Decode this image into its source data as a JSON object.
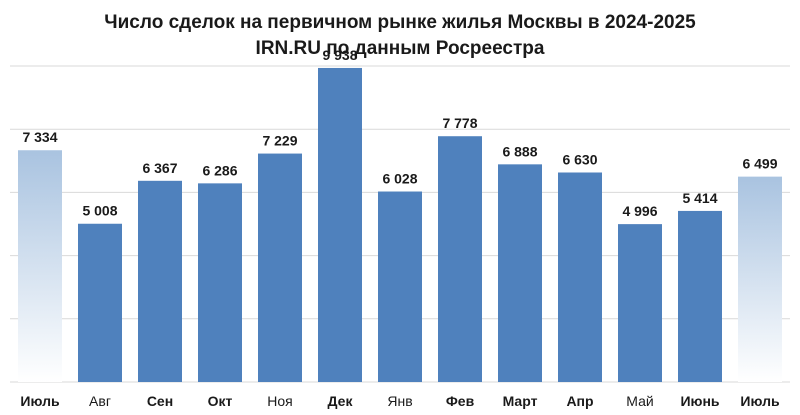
{
  "chart_data": {
    "type": "bar",
    "title": "Число сделок на первичном рынке жилья  Москвы в 2024-2025",
    "subtitle": "IRN.RU по данным Росреестра",
    "categories": [
      "Июль",
      "Авг",
      "Сен",
      "Окт",
      "Ноя",
      "Дек",
      "Янв",
      "Фев",
      "Март",
      "Апр",
      "Май",
      "Июнь",
      "Июль"
    ],
    "values": [
      7334,
      5008,
      6367,
      6286,
      7229,
      9938,
      6028,
      7778,
      6888,
      6630,
      4996,
      5414,
      6499
    ],
    "value_labels": [
      "7 334",
      "5 008",
      "6 367",
      "6 286",
      "7 229",
      "9 938",
      "6 028",
      "7 778",
      "6 888",
      "6 630",
      "4 996",
      "5 414",
      "6 499"
    ],
    "ylim": [
      0,
      10000
    ],
    "grid": true,
    "xlabel": "",
    "ylabel": "",
    "colors": {
      "bar": "#4f81bd",
      "highlight_top": "#a9c3e0",
      "highlight_bottom": "#ffffff",
      "grid": "#d9d9d9"
    }
  }
}
